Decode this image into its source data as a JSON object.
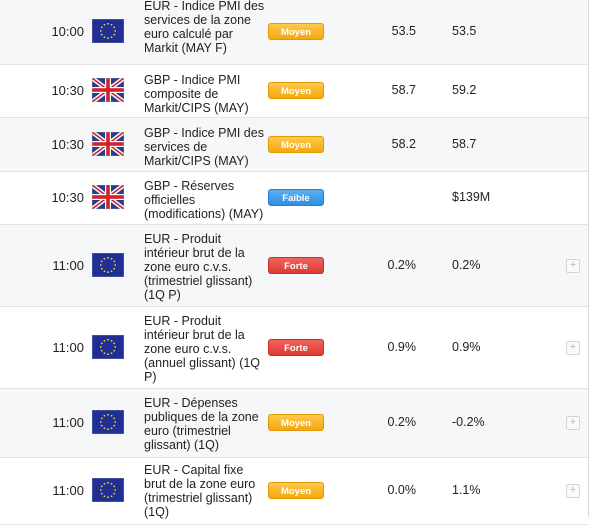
{
  "rows": [
    {
      "time": "10:00",
      "flag": "eu-flag-icon",
      "event": "EUR - Indice PMI des services de la zone euro calculé par Markit (MAY F)",
      "importance": "Moyen",
      "actual": "53.5",
      "forecast": "53.5",
      "has_expand": false
    },
    {
      "time": "10:30",
      "flag": "uk-flag-icon",
      "event": "GBP - Indice PMI composite de Markit/CIPS (MAY)",
      "importance": "Moyen",
      "actual": "58.7",
      "forecast": "59.2",
      "has_expand": false
    },
    {
      "time": "10:30",
      "flag": "uk-flag-icon",
      "event": "GBP - Indice PMI des services de Markit/CIPS (MAY)",
      "importance": "Moyen",
      "actual": "58.2",
      "forecast": "58.7",
      "has_expand": false
    },
    {
      "time": "10:30",
      "flag": "uk-flag-icon",
      "event": "GBP - Réserves officielles (modifications) (MAY)",
      "importance": "Faible",
      "actual": "",
      "forecast": "$139M",
      "has_expand": false
    },
    {
      "time": "11:00",
      "flag": "eu-flag-icon",
      "event": "EUR - Produit intérieur brut de la zone euro c.v.s. (trimestriel glissant) (1Q P)",
      "importance": "Forte",
      "actual": "0.2%",
      "forecast": "0.2%",
      "has_expand": true
    },
    {
      "time": "11:00",
      "flag": "eu-flag-icon",
      "event": "EUR - Produit intérieur brut de la zone euro c.v.s. (annuel glissant) (1Q P)",
      "importance": "Forte",
      "actual": "0.9%",
      "forecast": "0.9%",
      "has_expand": true
    },
    {
      "time": "11:00",
      "flag": "eu-flag-icon",
      "event": "EUR - Dépenses publiques de la zone euro (trimestriel glissant) (1Q)",
      "importance": "Moyen",
      "actual": "0.2%",
      "forecast": "-0.2%",
      "has_expand": true
    },
    {
      "time": "11:00",
      "flag": "eu-flag-icon",
      "event": "EUR - Capital fixe brut de la zone euro (trimestriel glissant) (1Q)",
      "importance": "Moyen",
      "actual": "0.0%",
      "forecast": "1.1%",
      "has_expand": true
    }
  ],
  "expand_symbol": "+",
  "colors": {
    "moyen": "#f4a70f",
    "faible": "#2d8fe0",
    "forte": "#dc3a33",
    "eu_blue": "#1f2f95",
    "eu_star": "#ffd500"
  }
}
